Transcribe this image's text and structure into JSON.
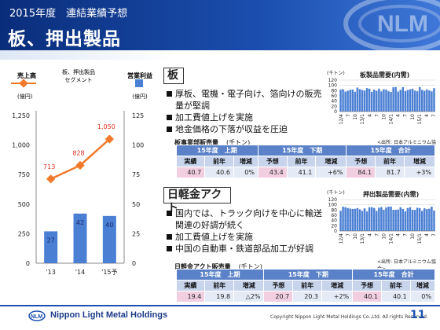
{
  "header": {
    "subtitle": "2015年度　連結業績予想",
    "title": "板、押出製品"
  },
  "chart": {
    "legend_sales": "売上高",
    "legend_sales_unit": "(億円)",
    "legend_segment_line1": "板、押出製品",
    "legend_segment_line2": "セグメント",
    "legend_profit": "営業利益",
    "legend_profit_unit": "(億円)",
    "left_ticks": [
      "0",
      "250",
      "500",
      "750",
      "1,000",
      "1,250"
    ],
    "right_ticks": [
      "0",
      "25",
      "50",
      "75",
      "100",
      "125"
    ],
    "categories": [
      "'13",
      "'14",
      "'15予"
    ],
    "profit_labels": [
      "27",
      "42",
      "40"
    ],
    "sales_labels": [
      "713",
      "828",
      "1,050"
    ],
    "colors": {
      "bar": "#4a7fd4",
      "line": "#f07a2a",
      "label_red": "#e03020"
    }
  },
  "chart_data": {
    "type": "bar",
    "categories": [
      "'13",
      "'14",
      "'15予"
    ],
    "series": [
      {
        "name": "営業利益",
        "type": "bar",
        "axis": "right",
        "values": [
          27,
          42,
          40
        ]
      },
      {
        "name": "売上高",
        "type": "line",
        "axis": "left",
        "values": [
          713,
          828,
          1050
        ]
      }
    ],
    "ylim_left": [
      0,
      1250
    ],
    "ylim_right": [
      0,
      125
    ],
    "left_ylabel": "(億円)",
    "right_ylabel": "(億円)",
    "grid": false
  },
  "panel1": {
    "label": "板",
    "bullets": [
      "厚板、電機・電子向け、箔向けの販売量が堅調",
      "加工費値上げを実施",
      "地金価格の下落が収益を圧迫"
    ],
    "mini_chart": {
      "title": "板製品需要(内需)",
      "unit": "(千トン)",
      "source": "<出所: 日本アルミニウム協会>",
      "y_ticks": [
        "0",
        "20",
        "40",
        "60",
        "80",
        "100",
        "120"
      ],
      "x_labels": [
        "12/4",
        "7",
        "10",
        "13/1",
        "4",
        "7",
        "10",
        "14/1",
        "4",
        "7",
        "10",
        "15/1",
        "4",
        "7"
      ]
    },
    "table": {
      "caption": "板事業部販売量",
      "unit": "(千トン)",
      "groups": [
        "15年度　上期",
        "15年度　下期",
        "15年度　合計"
      ],
      "sub_headers": [
        "実績",
        "前年",
        "増減",
        "予想",
        "前年",
        "増減",
        "予想",
        "前年",
        "増減"
      ],
      "values": [
        "40.7",
        "40.6",
        "0%",
        "43.4",
        "41.1",
        "+6%",
        "84.1",
        "81.7",
        "+3%"
      ]
    }
  },
  "panel2": {
    "label": "日軽金アクト",
    "bullets": [
      "国内では、トラック向けを中心に輸送関連の好調が続く",
      "加工費値上げを実施",
      "中国の自動車・鉄道部品加工が好調"
    ],
    "mini_chart": {
      "title": "押出製品需要(内需)",
      "unit": "(千トン)",
      "source": "<出所: 日本アルミニウム協会>",
      "y_ticks": [
        "0",
        "20",
        "40",
        "60",
        "80",
        "100",
        "120"
      ],
      "x_labels": [
        "12/4",
        "7",
        "10",
        "13/1",
        "4",
        "7",
        "10",
        "14/1",
        "4",
        "7",
        "10",
        "15/1",
        "4",
        "7"
      ]
    },
    "table": {
      "caption": "日軽金アクト販売量",
      "unit": "(千トン)",
      "groups": [
        "15年度　上期",
        "15年度　下期",
        "15年度　合計"
      ],
      "sub_headers": [
        "実績",
        "前年",
        "増減",
        "予想",
        "前年",
        "増減",
        "予想",
        "前年",
        "増減"
      ],
      "values": [
        "19.4",
        "19.8",
        "△2%",
        "20.7",
        "20.3",
        "+2%",
        "40.1",
        "40.1",
        "0%"
      ]
    }
  },
  "footer": {
    "company": "Nippon Light Metal Holdings",
    "copyright": "Copyright Nippon Light Metal Holdings Co.,Ltd. All rights Reserved.",
    "page": "11"
  }
}
